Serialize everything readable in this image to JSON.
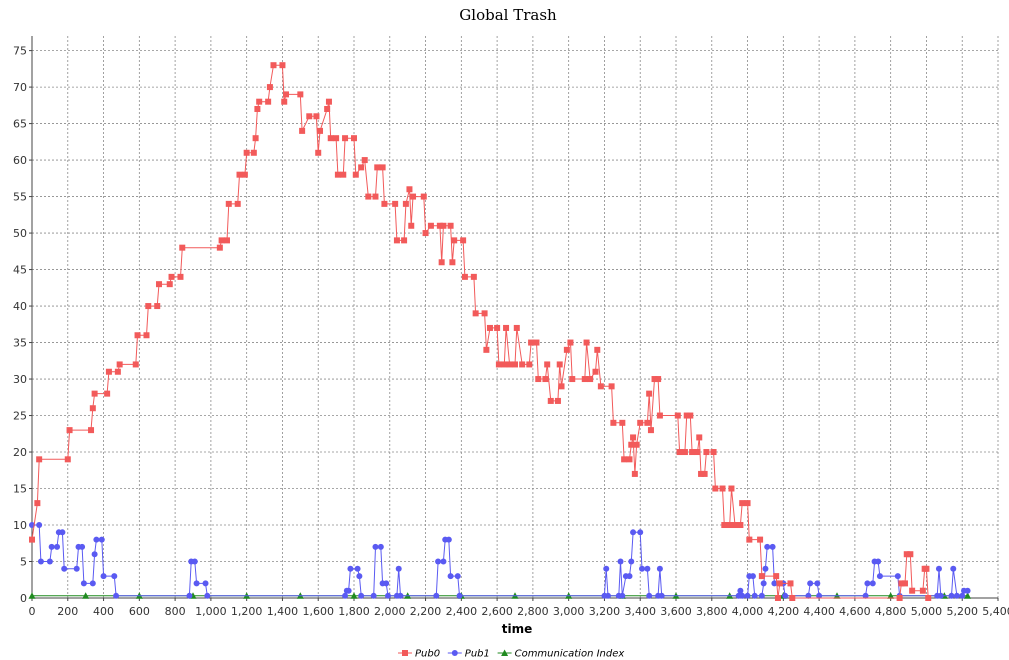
{
  "chart_data": {
    "type": "line",
    "title": "Global Trash",
    "xlabel": "time",
    "ylabel": "",
    "xlim": [
      0,
      5400
    ],
    "ylim": [
      0,
      77
    ],
    "x_ticks": [
      0,
      200,
      400,
      600,
      800,
      1000,
      1200,
      1400,
      1600,
      1800,
      2000,
      2200,
      2400,
      2600,
      2800,
      3000,
      3200,
      3400,
      3600,
      3800,
      4000,
      4200,
      4400,
      4600,
      4800,
      5000,
      5200,
      5400
    ],
    "x_tick_labels": [
      "0",
      "200",
      "400",
      "600",
      "800",
      "1,000",
      "1,200",
      "1,400",
      "1,600",
      "1,800",
      "2,000",
      "2,200",
      "2,400",
      "2,600",
      "2,800",
      "3,000",
      "3,200",
      "3,400",
      "3,600",
      "3,800",
      "4,000",
      "4,200",
      "4,400",
      "4,600",
      "4,800",
      "5,000",
      "5,200",
      "5,400"
    ],
    "y_ticks": [
      0,
      5,
      10,
      15,
      20,
      25,
      30,
      35,
      40,
      45,
      50,
      55,
      60,
      65,
      70,
      75
    ],
    "grid": true,
    "legend_position": "bottom-center",
    "series": [
      {
        "name": "Pub0",
        "color": "#f25a5a",
        "marker": "square",
        "points": [
          [
            0,
            8
          ],
          [
            30,
            13
          ],
          [
            40,
            19
          ],
          [
            200,
            19
          ],
          [
            210,
            23
          ],
          [
            330,
            23
          ],
          [
            340,
            26
          ],
          [
            350,
            28
          ],
          [
            420,
            28
          ],
          [
            430,
            31
          ],
          [
            480,
            31
          ],
          [
            490,
            32
          ],
          [
            580,
            32
          ],
          [
            590,
            36
          ],
          [
            640,
            36
          ],
          [
            650,
            40
          ],
          [
            700,
            40
          ],
          [
            710,
            43
          ],
          [
            770,
            43
          ],
          [
            780,
            44
          ],
          [
            830,
            44
          ],
          [
            840,
            48
          ],
          [
            1050,
            48
          ],
          [
            1060,
            49
          ],
          [
            1090,
            49
          ],
          [
            1100,
            54
          ],
          [
            1150,
            54
          ],
          [
            1160,
            58
          ],
          [
            1190,
            58
          ],
          [
            1200,
            61
          ],
          [
            1240,
            61
          ],
          [
            1250,
            63
          ],
          [
            1260,
            67
          ],
          [
            1270,
            68
          ],
          [
            1320,
            68
          ],
          [
            1330,
            70
          ],
          [
            1350,
            73
          ],
          [
            1400,
            73
          ],
          [
            1410,
            68
          ],
          [
            1420,
            69
          ],
          [
            1500,
            69
          ],
          [
            1510,
            64
          ],
          [
            1550,
            66
          ],
          [
            1590,
            66
          ],
          [
            1600,
            61
          ],
          [
            1610,
            64
          ],
          [
            1650,
            67
          ],
          [
            1660,
            68
          ],
          [
            1670,
            63
          ],
          [
            1700,
            63
          ],
          [
            1710,
            58
          ],
          [
            1740,
            58
          ],
          [
            1750,
            63
          ],
          [
            1800,
            63
          ],
          [
            1810,
            58
          ],
          [
            1840,
            59
          ],
          [
            1860,
            60
          ],
          [
            1880,
            55
          ],
          [
            1920,
            55
          ],
          [
            1930,
            59
          ],
          [
            1960,
            59
          ],
          [
            1970,
            54
          ],
          [
            2030,
            54
          ],
          [
            2040,
            49
          ],
          [
            2080,
            49
          ],
          [
            2090,
            54
          ],
          [
            2110,
            56
          ],
          [
            2120,
            51
          ],
          [
            2130,
            55
          ],
          [
            2190,
            55
          ],
          [
            2200,
            50
          ],
          [
            2230,
            51
          ],
          [
            2280,
            51
          ],
          [
            2290,
            46
          ],
          [
            2300,
            51
          ],
          [
            2340,
            51
          ],
          [
            2350,
            46
          ],
          [
            2360,
            49
          ],
          [
            2410,
            49
          ],
          [
            2420,
            44
          ],
          [
            2470,
            44
          ],
          [
            2480,
            39
          ],
          [
            2530,
            39
          ],
          [
            2540,
            34
          ],
          [
            2560,
            37
          ],
          [
            2600,
            37
          ],
          [
            2610,
            32
          ],
          [
            2640,
            32
          ],
          [
            2650,
            37
          ],
          [
            2670,
            32
          ],
          [
            2700,
            32
          ],
          [
            2710,
            37
          ],
          [
            2740,
            32
          ],
          [
            2780,
            32
          ],
          [
            2790,
            35
          ],
          [
            2820,
            35
          ],
          [
            2830,
            30
          ],
          [
            2870,
            30
          ],
          [
            2880,
            32
          ],
          [
            2900,
            27
          ],
          [
            2940,
            27
          ],
          [
            2950,
            32
          ],
          [
            2960,
            29
          ],
          [
            2990,
            34
          ],
          [
            3010,
            35
          ],
          [
            3020,
            30
          ],
          [
            3090,
            30
          ],
          [
            3100,
            35
          ],
          [
            3120,
            30
          ],
          [
            3150,
            31
          ],
          [
            3160,
            34
          ],
          [
            3180,
            29
          ],
          [
            3240,
            29
          ],
          [
            3250,
            24
          ],
          [
            3300,
            24
          ],
          [
            3310,
            19
          ],
          [
            3340,
            19
          ],
          [
            3350,
            21
          ],
          [
            3360,
            22
          ],
          [
            3370,
            17
          ],
          [
            3380,
            21
          ],
          [
            3400,
            24
          ],
          [
            3440,
            24
          ],
          [
            3450,
            28
          ],
          [
            3460,
            23
          ],
          [
            3480,
            30
          ],
          [
            3500,
            30
          ],
          [
            3510,
            25
          ],
          [
            3610,
            25
          ],
          [
            3620,
            20
          ],
          [
            3650,
            20
          ],
          [
            3660,
            25
          ],
          [
            3680,
            25
          ],
          [
            3690,
            20
          ],
          [
            3720,
            20
          ],
          [
            3730,
            22
          ],
          [
            3740,
            17
          ],
          [
            3760,
            17
          ],
          [
            3770,
            20
          ],
          [
            3810,
            20
          ],
          [
            3820,
            15
          ],
          [
            3860,
            15
          ],
          [
            3870,
            10
          ],
          [
            3900,
            10
          ],
          [
            3910,
            15
          ],
          [
            3930,
            10
          ],
          [
            3960,
            10
          ],
          [
            3970,
            13
          ],
          [
            4000,
            13
          ],
          [
            4010,
            8
          ],
          [
            4070,
            8
          ],
          [
            4080,
            3
          ],
          [
            4160,
            3
          ],
          [
            4170,
            0
          ],
          [
            4180,
            2
          ],
          [
            4240,
            2
          ],
          [
            4250,
            0
          ],
          [
            4850,
            0
          ],
          [
            4860,
            2
          ],
          [
            4880,
            2
          ],
          [
            4890,
            6
          ],
          [
            4910,
            6
          ],
          [
            4920,
            1
          ],
          [
            4980,
            1
          ],
          [
            4990,
            4
          ],
          [
            5000,
            4
          ],
          [
            5010,
            0
          ]
        ]
      },
      {
        "name": "Pub1",
        "color": "#5a5af2",
        "marker": "circle",
        "points": [
          [
            0,
            10
          ],
          [
            40,
            10
          ],
          [
            50,
            5
          ],
          [
            100,
            5
          ],
          [
            110,
            7
          ],
          [
            140,
            7
          ],
          [
            150,
            9
          ],
          [
            170,
            9
          ],
          [
            180,
            4
          ],
          [
            250,
            4
          ],
          [
            260,
            7
          ],
          [
            280,
            7
          ],
          [
            290,
            2
          ],
          [
            340,
            2
          ],
          [
            350,
            6
          ],
          [
            360,
            8
          ],
          [
            390,
            8
          ],
          [
            400,
            3
          ],
          [
            460,
            3
          ],
          [
            470,
            0.3
          ],
          [
            880,
            0.3
          ],
          [
            890,
            5
          ],
          [
            910,
            5
          ],
          [
            920,
            2
          ],
          [
            970,
            2
          ],
          [
            980,
            0.3
          ],
          [
            1750,
            0.3
          ],
          [
            1760,
            1
          ],
          [
            1770,
            1
          ],
          [
            1780,
            4
          ],
          [
            1820,
            4
          ],
          [
            1830,
            3
          ],
          [
            1840,
            0.3
          ],
          [
            1910,
            0.3
          ],
          [
            1920,
            7
          ],
          [
            1950,
            7
          ],
          [
            1960,
            2
          ],
          [
            1980,
            2
          ],
          [
            1990,
            0.3
          ],
          [
            2040,
            0.3
          ],
          [
            2050,
            4
          ],
          [
            2060,
            0.3
          ],
          [
            2260,
            0.3
          ],
          [
            2270,
            5
          ],
          [
            2300,
            5
          ],
          [
            2310,
            8
          ],
          [
            2330,
            8
          ],
          [
            2340,
            3
          ],
          [
            2380,
            3
          ],
          [
            2390,
            0.3
          ],
          [
            3200,
            0.3
          ],
          [
            3210,
            4
          ],
          [
            3220,
            0.3
          ],
          [
            3280,
            0.3
          ],
          [
            3290,
            5
          ],
          [
            3300,
            0.3
          ],
          [
            3320,
            3
          ],
          [
            3340,
            3
          ],
          [
            3350,
            5
          ],
          [
            3360,
            9
          ],
          [
            3400,
            9
          ],
          [
            3410,
            4
          ],
          [
            3440,
            4
          ],
          [
            3450,
            0.3
          ],
          [
            3500,
            0.3
          ],
          [
            3510,
            4
          ],
          [
            3520,
            0.3
          ],
          [
            3950,
            0.3
          ],
          [
            3960,
            1
          ],
          [
            3970,
            0.3
          ],
          [
            4000,
            0.3
          ],
          [
            4010,
            3
          ],
          [
            4030,
            3
          ],
          [
            4040,
            0.3
          ],
          [
            4080,
            0.3
          ],
          [
            4090,
            2
          ],
          [
            4100,
            4
          ],
          [
            4110,
            7
          ],
          [
            4140,
            7
          ],
          [
            4150,
            2
          ],
          [
            4200,
            2
          ],
          [
            4210,
            0.3
          ],
          [
            4340,
            0.3
          ],
          [
            4350,
            2
          ],
          [
            4390,
            2
          ],
          [
            4400,
            0.3
          ],
          [
            4660,
            0.3
          ],
          [
            4670,
            2
          ],
          [
            4700,
            2
          ],
          [
            4710,
            5
          ],
          [
            4730,
            5
          ],
          [
            4740,
            3
          ],
          [
            4840,
            3
          ],
          [
            4850,
            0.3
          ],
          [
            5060,
            0.3
          ],
          [
            5070,
            4
          ],
          [
            5080,
            0.3
          ],
          [
            5140,
            0.3
          ],
          [
            5150,
            4
          ],
          [
            5170,
            0.3
          ],
          [
            5200,
            0.3
          ],
          [
            5210,
            1
          ],
          [
            5230,
            1
          ]
        ]
      },
      {
        "name": "Communication Index",
        "color": "#1f8a1f",
        "marker": "triangle",
        "points": [
          [
            0,
            0.3
          ],
          [
            300,
            0.3
          ],
          [
            600,
            0.3
          ],
          [
            900,
            0.3
          ],
          [
            1200,
            0.3
          ],
          [
            1500,
            0.3
          ],
          [
            1800,
            0.3
          ],
          [
            2100,
            0.3
          ],
          [
            2400,
            0.3
          ],
          [
            2700,
            0.3
          ],
          [
            3000,
            0.3
          ],
          [
            3300,
            0.3
          ],
          [
            3600,
            0.3
          ],
          [
            3900,
            0.3
          ],
          [
            4200,
            0.3
          ],
          [
            4500,
            0.3
          ],
          [
            4800,
            0.3
          ],
          [
            5100,
            0.3
          ],
          [
            5230,
            0.3
          ]
        ]
      }
    ]
  }
}
